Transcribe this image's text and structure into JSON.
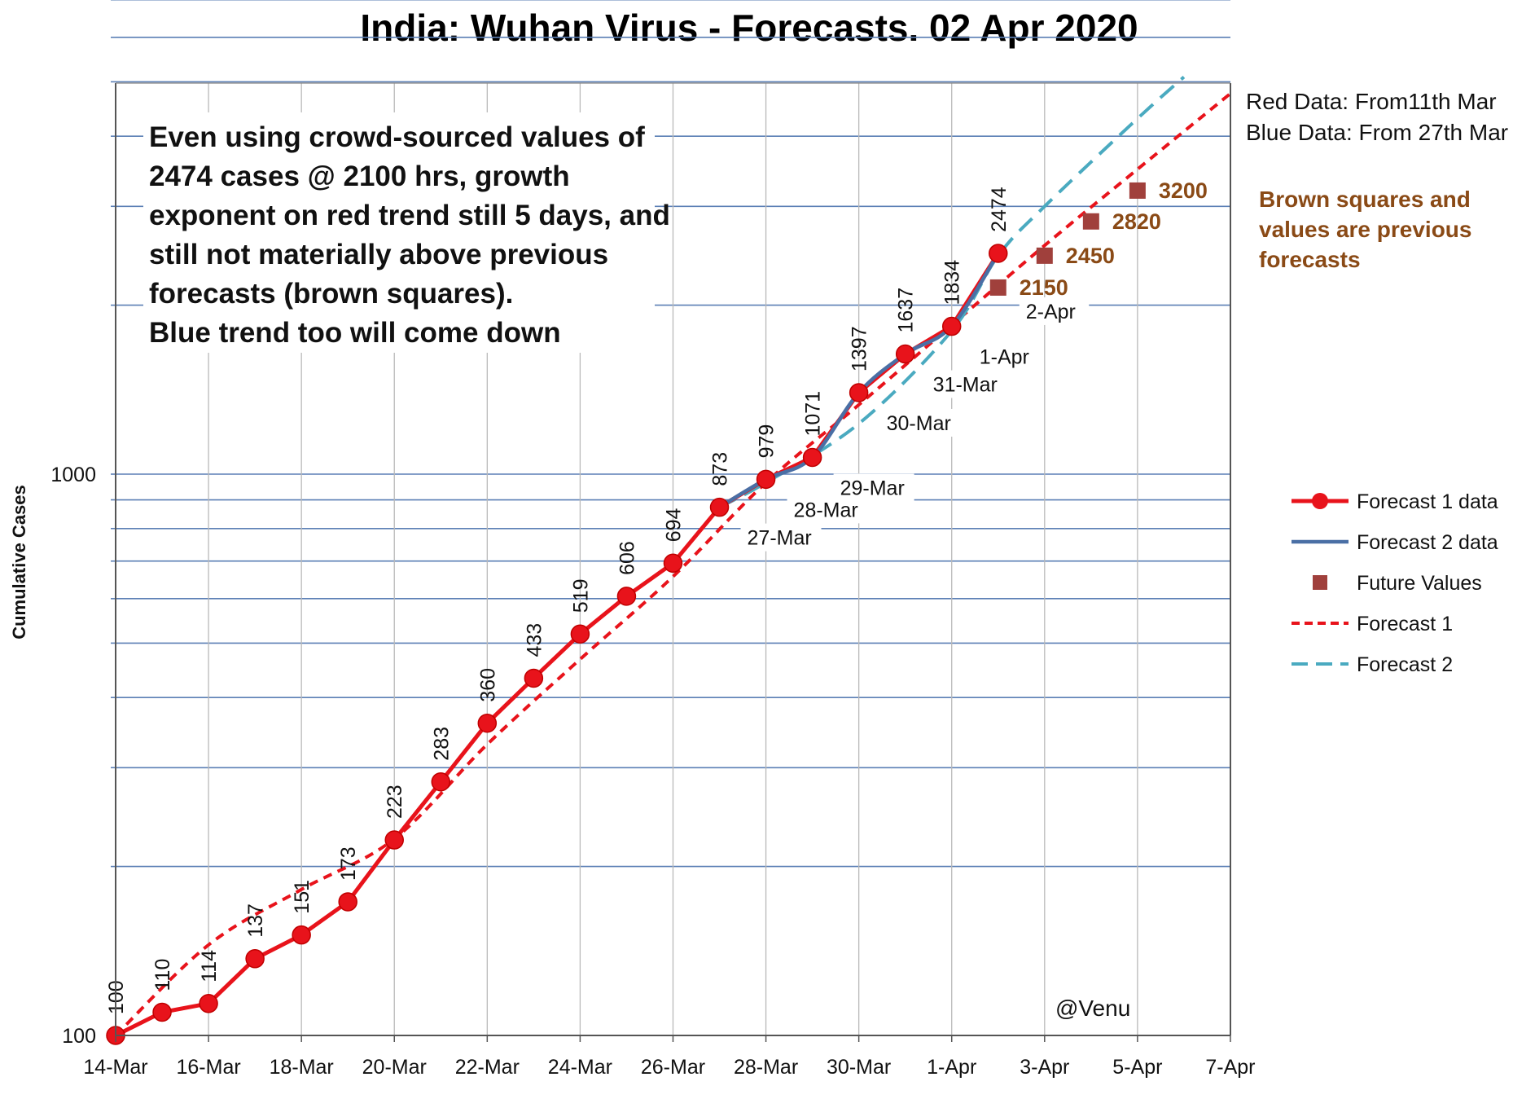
{
  "colors": {
    "forecast1_data": "#e8131b",
    "forecast2_data": "#4a6fa5",
    "future_values": "#a0403c",
    "forecast1_trend": "#e8131b",
    "forecast2_trend": "#4aaac0",
    "hgrid": "#5b7fb5",
    "vgrid": "#b9b9b9",
    "brown_text": "#8a4a16"
  },
  "chart_data": {
    "type": "line",
    "title": "India: Wuhan Virus - Forecasts. 02 Apr 2020",
    "ylabel": "Cumulative Cases",
    "y_scale": "log",
    "ylim": [
      100,
      7500
    ],
    "y_tick_labels": [
      "100",
      "1000"
    ],
    "x_start": "2020-03-14",
    "x_end": "2020-04-07",
    "x_tick_labels": [
      "14-Mar",
      "16-Mar",
      "18-Mar",
      "20-Mar",
      "22-Mar",
      "24-Mar",
      "26-Mar",
      "28-Mar",
      "30-Mar",
      "1-Apr",
      "3-Apr",
      "5-Apr",
      "7-Apr"
    ],
    "series": [
      {
        "name": "Forecast 1 data",
        "x": [
          "14-Mar",
          "15-Mar",
          "16-Mar",
          "17-Mar",
          "18-Mar",
          "19-Mar",
          "20-Mar",
          "21-Mar",
          "22-Mar",
          "23-Mar",
          "24-Mar",
          "25-Mar",
          "26-Mar",
          "27-Mar",
          "28-Mar",
          "29-Mar",
          "30-Mar",
          "31-Mar",
          "1-Apr",
          "2-Apr"
        ],
        "values": [
          100,
          110,
          114,
          137,
          151,
          173,
          223,
          283,
          360,
          433,
          519,
          606,
          694,
          873,
          979,
          1071,
          1397,
          1637,
          1834,
          2474
        ],
        "point_labels": [
          "100",
          "110",
          "114",
          "137",
          "151",
          "173",
          "223",
          "283",
          "360",
          "433",
          "519",
          "606",
          "694",
          "873",
          "979",
          "1071",
          "1397",
          "1637",
          "1834",
          "2474"
        ]
      },
      {
        "name": "Forecast 2 data",
        "x": [
          "27-Mar",
          "28-Mar",
          "29-Mar",
          "30-Mar",
          "31-Mar",
          "1-Apr",
          "2-Apr"
        ],
        "values": [
          873,
          979,
          1071,
          1397,
          1637,
          1834,
          2474
        ]
      },
      {
        "name": "Future Values",
        "x": [
          "2-Apr",
          "3-Apr",
          "4-Apr",
          "5-Apr"
        ],
        "values": [
          2150,
          2450,
          2820,
          3200
        ],
        "point_labels": [
          "2150",
          "2450",
          "2820",
          "3200"
        ]
      },
      {
        "name": "Forecast 1",
        "x": [
          "14-Mar",
          "16-Mar",
          "18-Mar",
          "20-Mar",
          "22-Mar",
          "24-Mar",
          "26-Mar",
          "28-Mar",
          "30-Mar",
          "1-Apr",
          "3-Apr",
          "5-Apr",
          "7-Apr"
        ],
        "values": [
          100,
          145,
          182,
          224,
          330,
          468,
          657,
          966,
          1329,
          1843,
          2555,
          3493,
          4765
        ]
      },
      {
        "name": "Forecast 2",
        "x": [
          "27-Mar",
          "28-Mar",
          "30-Mar",
          "1-Apr",
          "2-Apr",
          "3-Apr",
          "5-Apr",
          "6-Apr"
        ],
        "values": [
          873,
          966,
          1230,
          1800,
          2450,
          3000,
          4300,
          5100
        ]
      }
    ],
    "date_annotations": [
      "27-Mar",
      "28-Mar",
      "29-Mar",
      "30-Mar",
      "31-Mar",
      "1-Apr",
      "2-Apr"
    ],
    "legend_position": "right"
  },
  "notes": {
    "red_data": "Red Data: From11th Mar",
    "blue_data": "Blue Data: From 27th Mar",
    "brown_note": [
      "Brown squares and",
      "values are previous",
      "forecasts"
    ],
    "credit": "@Venu"
  },
  "annotation_lines": [
    "Even using crowd-sourced values of",
    "2474 cases @ 2100 hrs, growth",
    "exponent on red trend still 5 days, and",
    "still not materially above previous",
    "forecasts (brown squares).",
    "Blue trend too will come down"
  ],
  "legend": [
    {
      "label": "Forecast 1 data",
      "kind": "line-marker",
      "color_key": "forecast1_data"
    },
    {
      "label": "Forecast 2 data",
      "kind": "line",
      "color_key": "forecast2_data"
    },
    {
      "label": "Future Values",
      "kind": "square",
      "color_key": "future_values"
    },
    {
      "label": "Forecast 1",
      "kind": "dotted",
      "color_key": "forecast1_trend"
    },
    {
      "label": "Forecast 2",
      "kind": "dashed",
      "color_key": "forecast2_trend"
    }
  ]
}
